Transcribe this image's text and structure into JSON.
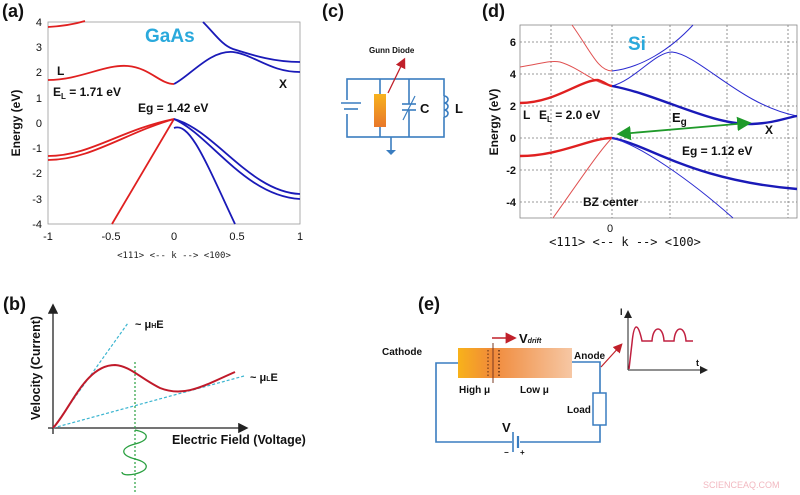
{
  "panels": {
    "a": {
      "label": "(a)",
      "material": "GaAs",
      "point_L": "L",
      "point_X": "X",
      "EL": "E",
      "EL_sub": "L",
      "EL_val": " = 1.71 eV",
      "Eg": "Eg = 1.42 eV",
      "ylabel": "Energy (eV)",
      "yticks": [
        "4",
        "3",
        "2",
        "1",
        "0",
        "-1",
        "-2",
        "-3",
        "-4"
      ],
      "xticks": [
        "-1",
        "-0.5",
        "0",
        "0.5",
        "1"
      ],
      "xlabel": "<111> <-- k --> <100>"
    },
    "b": {
      "label": "(b)",
      "ylabel": "Velocity (Current)",
      "xlabel": "Electric Field (Voltage)",
      "muH": "~ μ",
      "muH_sub": "H",
      "muH_tail": "E",
      "muL": "~ μ",
      "muL_sub": "L",
      "muL_tail": "E"
    },
    "c": {
      "label": "(c)",
      "gunn": "Gunn Diode",
      "C": "C",
      "L": "L"
    },
    "d": {
      "label": "(d)",
      "material": "Si",
      "point_L": "L",
      "point_X": "X",
      "EL": "E",
      "EL_sub": "L",
      "EL_val": " = 2.0 eV",
      "Eg_sym": "E",
      "Eg_sub": "g",
      "Eg": "Eg = 1.12 eV",
      "bz": "BZ center",
      "ylabel": "Energy (eV)",
      "yticks": [
        "6",
        "4",
        "2",
        "0",
        "-2",
        "-4"
      ],
      "zero": "0",
      "xlabel": "<111> <-- k  --> <100>"
    },
    "e": {
      "label": "(e)",
      "cathode": "Cathode",
      "anode": "Anode",
      "vdrift": "V",
      "vdrift_sub": "drift",
      "high": "High μ",
      "low": "Low μ",
      "load": "Load",
      "V": "V",
      "minus": "−",
      "plus": "+",
      "I": "I",
      "t": "t"
    }
  },
  "watermark": "SCIENCEAQ.COM",
  "colors": {
    "red_band": "#e02020",
    "blue_band": "#1a1ab8",
    "title_cyan": "#2aa9dc",
    "wire": "#3a7dc0",
    "diode_orange": "#f5a020",
    "green": "#1f9a2a"
  },
  "chart_data": [
    {
      "panel": "a",
      "type": "line",
      "title": "GaAs",
      "ylabel": "Energy (eV)",
      "xlabel": "<111> <-- k --> <100>",
      "xlim": [
        -1,
        1
      ],
      "ylim": [
        -4,
        4
      ],
      "grid": false,
      "series": [
        {
          "color": "red",
          "x": [
            -1,
            -0.35,
            0
          ],
          "y": [
            1.71,
            2.25,
            1.55
          ]
        },
        {
          "color": "blue",
          "x": [
            0,
            0.45,
            1
          ],
          "y": [
            1.55,
            2.8,
            2.0
          ]
        },
        {
          "color": "red",
          "x": [
            -1,
            0
          ],
          "y": [
            -1.3,
            0.1
          ]
        },
        {
          "color": "blue",
          "x": [
            0,
            1
          ],
          "y": [
            0.1,
            -2.8
          ]
        },
        {
          "color": "blue",
          "x": [
            0,
            0.48
          ],
          "y": [
            -0.2,
            -4
          ]
        },
        {
          "color": "red",
          "x": [
            -0.5,
            0
          ],
          "y": [
            -4,
            0.1
          ]
        }
      ]
    },
    {
      "panel": "d",
      "type": "line",
      "title": "Si",
      "ylabel": "Energy (eV)",
      "xlabel": "<111> <-- k --> <100>",
      "ylim": [
        -5,
        7
      ],
      "grid": true,
      "series": [
        {
          "color": "red",
          "name": "",
          "x": [
            -1,
            -0.2,
            0
          ],
          "y": [
            2.2,
            3.6,
            3.4
          ]
        },
        {
          "color": "blue",
          "x": [
            0,
            0.8,
            1
          ],
          "y": [
            3.4,
            0.8,
            1.3
          ]
        },
        {
          "color": "red",
          "x": [
            -1,
            0
          ],
          "y": [
            -1.1,
            0
          ]
        },
        {
          "color": "blue",
          "x": [
            0,
            1
          ],
          "y": [
            0,
            -3.2
          ]
        }
      ]
    }
  ]
}
